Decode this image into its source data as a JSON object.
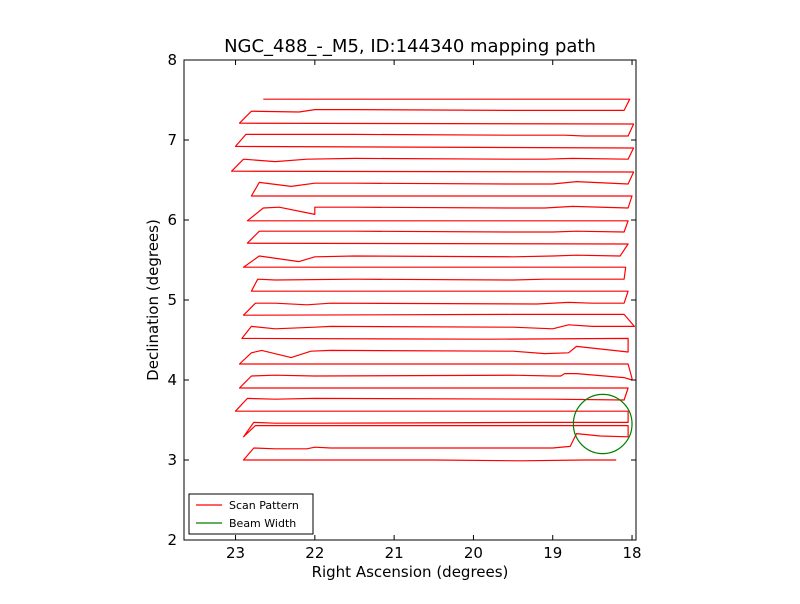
{
  "chart_data": {
    "type": "line",
    "title": "NGC_488_-_M5, ID:144340 mapping path",
    "xlabel": "Right Ascension (degrees)",
    "ylabel": "Declination (degrees)",
    "xlim": [
      23.65,
      17.95
    ],
    "ylim": [
      2,
      8
    ],
    "xticks": [
      23,
      22,
      21,
      20,
      19,
      18
    ],
    "yticks": [
      2,
      3,
      4,
      5,
      6,
      7,
      8
    ],
    "grid": false,
    "legend_position": "lower-left",
    "colors": {
      "scan": "#ff0000",
      "beam": "#008000"
    },
    "series": [
      {
        "name": "Scan Pattern",
        "kind": "line",
        "legend_label": "Scan Pattern",
        "points": [
          [
            18.2,
            3.0
          ],
          [
            18.6,
            3.0
          ],
          [
            19.4,
            2.99
          ],
          [
            20.5,
            3.0
          ],
          [
            21.5,
            3.0
          ],
          [
            22.9,
            3.0
          ],
          [
            22.77,
            3.15
          ],
          [
            22.5,
            3.14
          ],
          [
            22.1,
            3.14
          ],
          [
            22.0,
            3.16
          ],
          [
            21.8,
            3.15
          ],
          [
            19.0,
            3.15
          ],
          [
            18.78,
            3.17
          ],
          [
            18.7,
            3.33
          ],
          [
            18.4,
            3.3
          ],
          [
            18.05,
            3.29
          ],
          [
            18.05,
            3.43
          ],
          [
            22.75,
            3.43
          ],
          [
            22.9,
            3.29
          ],
          [
            22.77,
            3.47
          ],
          [
            22.5,
            3.46
          ],
          [
            22.0,
            3.46
          ],
          [
            19.1,
            3.47
          ],
          [
            18.05,
            3.47
          ],
          [
            18.05,
            3.61
          ],
          [
            23.0,
            3.61
          ],
          [
            22.85,
            3.77
          ],
          [
            22.5,
            3.76
          ],
          [
            22.0,
            3.77
          ],
          [
            19.0,
            3.76
          ],
          [
            18.1,
            3.75
          ],
          [
            18.05,
            3.9
          ],
          [
            19.6,
            3.9
          ],
          [
            22.95,
            3.9
          ],
          [
            22.8,
            4.05
          ],
          [
            22.5,
            4.06
          ],
          [
            22.0,
            4.05
          ],
          [
            19.5,
            4.06
          ],
          [
            19.0,
            4.05
          ],
          [
            18.9,
            4.05
          ],
          [
            18.85,
            4.08
          ],
          [
            18.7,
            4.08
          ],
          [
            18.1,
            4.03
          ],
          [
            18.0,
            4.0
          ],
          [
            18.0,
            4.02
          ],
          [
            18.05,
            4.2
          ],
          [
            22.95,
            4.2
          ],
          [
            22.8,
            4.34
          ],
          [
            22.67,
            4.37
          ],
          [
            22.3,
            4.28
          ],
          [
            22.05,
            4.36
          ],
          [
            21.8,
            4.37
          ],
          [
            19.5,
            4.36
          ],
          [
            19.1,
            4.33
          ],
          [
            18.8,
            4.34
          ],
          [
            18.7,
            4.42
          ],
          [
            18.05,
            4.35
          ],
          [
            18.05,
            4.52
          ],
          [
            19.8,
            4.51
          ],
          [
            22.92,
            4.52
          ],
          [
            22.8,
            4.67
          ],
          [
            22.5,
            4.64
          ],
          [
            22.0,
            4.66
          ],
          [
            21.8,
            4.67
          ],
          [
            19.5,
            4.66
          ],
          [
            19.0,
            4.64
          ],
          [
            18.8,
            4.69
          ],
          [
            18.5,
            4.67
          ],
          [
            17.97,
            4.67
          ],
          [
            18.1,
            4.82
          ],
          [
            19.5,
            4.82
          ],
          [
            22.9,
            4.81
          ],
          [
            22.75,
            4.96
          ],
          [
            22.5,
            4.96
          ],
          [
            22.1,
            4.94
          ],
          [
            21.8,
            4.96
          ],
          [
            19.2,
            4.95
          ],
          [
            18.8,
            4.97
          ],
          [
            18.5,
            4.96
          ],
          [
            18.1,
            4.96
          ],
          [
            18.05,
            5.11
          ],
          [
            22.8,
            5.11
          ],
          [
            22.72,
            5.26
          ],
          [
            22.5,
            5.25
          ],
          [
            21.5,
            5.26
          ],
          [
            19.5,
            5.25
          ],
          [
            19.1,
            5.26
          ],
          [
            18.7,
            5.26
          ],
          [
            18.1,
            5.26
          ],
          [
            18.08,
            5.41
          ],
          [
            22.9,
            5.41
          ],
          [
            22.7,
            5.55
          ],
          [
            22.2,
            5.48
          ],
          [
            22.0,
            5.54
          ],
          [
            21.5,
            5.55
          ],
          [
            19.5,
            5.54
          ],
          [
            19.0,
            5.55
          ],
          [
            18.7,
            5.56
          ],
          [
            18.15,
            5.55
          ],
          [
            18.05,
            5.7
          ],
          [
            22.85,
            5.71
          ],
          [
            22.7,
            5.86
          ],
          [
            22.5,
            5.86
          ],
          [
            21.5,
            5.86
          ],
          [
            19.5,
            5.85
          ],
          [
            19.0,
            5.85
          ],
          [
            18.7,
            5.86
          ],
          [
            18.1,
            5.85
          ],
          [
            18.05,
            5.99
          ],
          [
            22.85,
            5.99
          ],
          [
            22.65,
            6.15
          ],
          [
            22.45,
            6.16
          ],
          [
            22.0,
            6.07
          ],
          [
            22.0,
            6.16
          ],
          [
            21.5,
            6.16
          ],
          [
            19.5,
            6.15
          ],
          [
            19.1,
            6.15
          ],
          [
            18.75,
            6.17
          ],
          [
            18.05,
            6.15
          ],
          [
            18.0,
            6.3
          ],
          [
            22.8,
            6.3
          ],
          [
            22.7,
            6.47
          ],
          [
            22.3,
            6.42
          ],
          [
            22.0,
            6.46
          ],
          [
            21.5,
            6.46
          ],
          [
            19.5,
            6.45
          ],
          [
            19.0,
            6.45
          ],
          [
            18.7,
            6.48
          ],
          [
            18.05,
            6.45
          ],
          [
            17.98,
            6.6
          ],
          [
            23.05,
            6.61
          ],
          [
            22.9,
            6.76
          ],
          [
            22.5,
            6.73
          ],
          [
            22.1,
            6.76
          ],
          [
            21.5,
            6.77
          ],
          [
            19.5,
            6.76
          ],
          [
            19.1,
            6.76
          ],
          [
            18.75,
            6.77
          ],
          [
            18.05,
            6.76
          ],
          [
            17.98,
            6.9
          ],
          [
            23.0,
            6.92
          ],
          [
            22.87,
            7.07
          ],
          [
            22.5,
            7.07
          ],
          [
            21.5,
            7.07
          ],
          [
            19.5,
            7.06
          ],
          [
            19.1,
            7.06
          ],
          [
            18.85,
            7.06
          ],
          [
            18.6,
            7.05
          ],
          [
            18.05,
            7.05
          ],
          [
            17.98,
            7.2
          ],
          [
            22.95,
            7.21
          ],
          [
            22.8,
            7.36
          ],
          [
            22.2,
            7.35
          ],
          [
            22.0,
            7.38
          ],
          [
            21.5,
            7.38
          ],
          [
            19.5,
            7.37
          ],
          [
            18.9,
            7.37
          ],
          [
            18.1,
            7.37
          ],
          [
            18.03,
            7.51
          ],
          [
            22.65,
            7.51
          ]
        ]
      },
      {
        "name": "Beam Width",
        "kind": "circle",
        "legend_label": "Beam Width",
        "center": [
          18.37,
          3.45
        ],
        "radius": 0.37
      }
    ]
  }
}
